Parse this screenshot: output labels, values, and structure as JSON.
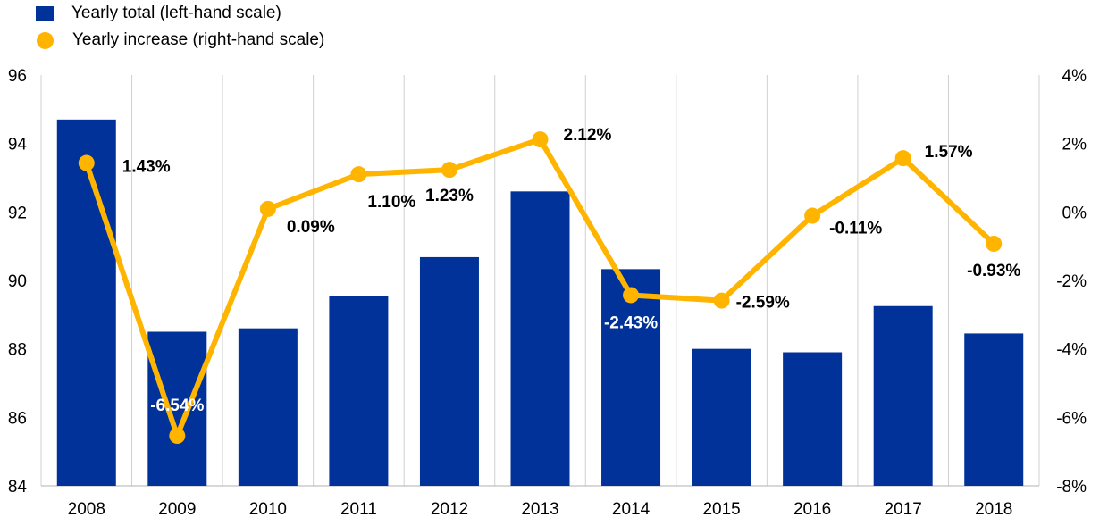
{
  "chart_data": {
    "type": "bar",
    "categories": [
      "2008",
      "2009",
      "2010",
      "2011",
      "2012",
      "2013",
      "2014",
      "2015",
      "2016",
      "2017",
      "2018"
    ],
    "series": [
      {
        "name": "Yearly total (left-hand scale)",
        "type": "bar",
        "axis": "left",
        "color": "#003299",
        "values": [
          94.7,
          88.5,
          88.6,
          89.55,
          90.68,
          92.6,
          90.33,
          88.0,
          87.9,
          89.25,
          88.45
        ]
      },
      {
        "name": "Yearly increase (right-hand scale)",
        "type": "line",
        "axis": "right",
        "color": "#FFB400",
        "values": [
          1.43,
          -6.54,
          0.09,
          1.1,
          1.23,
          2.12,
          -2.43,
          -2.59,
          -0.11,
          1.57,
          -0.93
        ],
        "labels": [
          "1.43%",
          "-6.54%",
          "0.09%",
          "1.10%",
          "1.23%",
          "2.12%",
          "-2.43%",
          "-2.59%",
          "-0.11%",
          "1.57%",
          "-0.93%"
        ]
      }
    ],
    "left_axis": {
      "ylim": [
        84,
        96
      ],
      "ticks": [
        "84",
        "86",
        "88",
        "90",
        "92",
        "94",
        "96"
      ]
    },
    "right_axis": {
      "ylim": [
        -8,
        4
      ],
      "ticks": [
        "-8%",
        "-6%",
        "-4%",
        "-2%",
        "0%",
        "2%",
        "4%"
      ]
    },
    "legend_position": "top-left",
    "grid": "vertical"
  }
}
